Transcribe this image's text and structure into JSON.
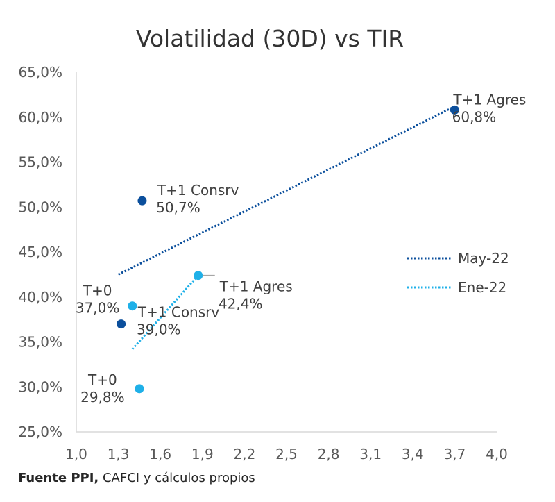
{
  "chart_data": {
    "type": "scatter",
    "title": "Volatilidad (30D) vs TIR",
    "xlabel": "",
    "ylabel": "",
    "xlim": [
      1.0,
      4.0
    ],
    "ylim": [
      0.25,
      0.65
    ],
    "x_ticks": [
      "1,0",
      "1,3",
      "1,6",
      "1,9",
      "2,2",
      "2,5",
      "2,8",
      "3,1",
      "3,4",
      "3,7",
      "4,0"
    ],
    "x_tick_values": [
      1.0,
      1.3,
      1.6,
      1.9,
      2.2,
      2.5,
      2.8,
      3.1,
      3.4,
      3.7,
      4.0
    ],
    "y_ticks": [
      "25,0%",
      "30,0%",
      "35,0%",
      "40,0%",
      "45,0%",
      "50,0%",
      "55,0%",
      "60,0%",
      "65,0%"
    ],
    "y_tick_values": [
      0.25,
      0.3,
      0.35,
      0.4,
      0.45,
      0.5,
      0.55,
      0.6,
      0.65
    ],
    "grid": false,
    "legend_position": "right",
    "series": [
      {
        "name": "May-22",
        "color": "#0b4f9c",
        "points": [
          {
            "x": 1.32,
            "y": 0.37,
            "name": "T+0",
            "value_label": "37,0%"
          },
          {
            "x": 1.47,
            "y": 0.507,
            "name": "T+1 Consrv",
            "value_label": "50,7%"
          },
          {
            "x": 3.7,
            "y": 0.608,
            "name": "T+1 Agres",
            "value_label": "60,8%"
          }
        ],
        "trendline": {
          "x": [
            1.3,
            3.7
          ],
          "y": [
            0.425,
            0.612
          ]
        }
      },
      {
        "name": "Ene-22",
        "color": "#1fb0e8",
        "points": [
          {
            "x": 1.45,
            "y": 0.298,
            "name": "T+0",
            "value_label": "29,8%"
          },
          {
            "x": 1.4,
            "y": 0.39,
            "name": "T+1 Consrv",
            "value_label": "39,0%"
          },
          {
            "x": 1.87,
            "y": 0.424,
            "name": "T+1 Agres",
            "value_label": "42,4%"
          }
        ],
        "trendline": {
          "x": [
            1.4,
            1.87
          ],
          "y": [
            0.342,
            0.424
          ]
        }
      }
    ]
  },
  "source": {
    "bold": "Fuente PPI,",
    "rest": "CAFCI y cálculos propios"
  }
}
